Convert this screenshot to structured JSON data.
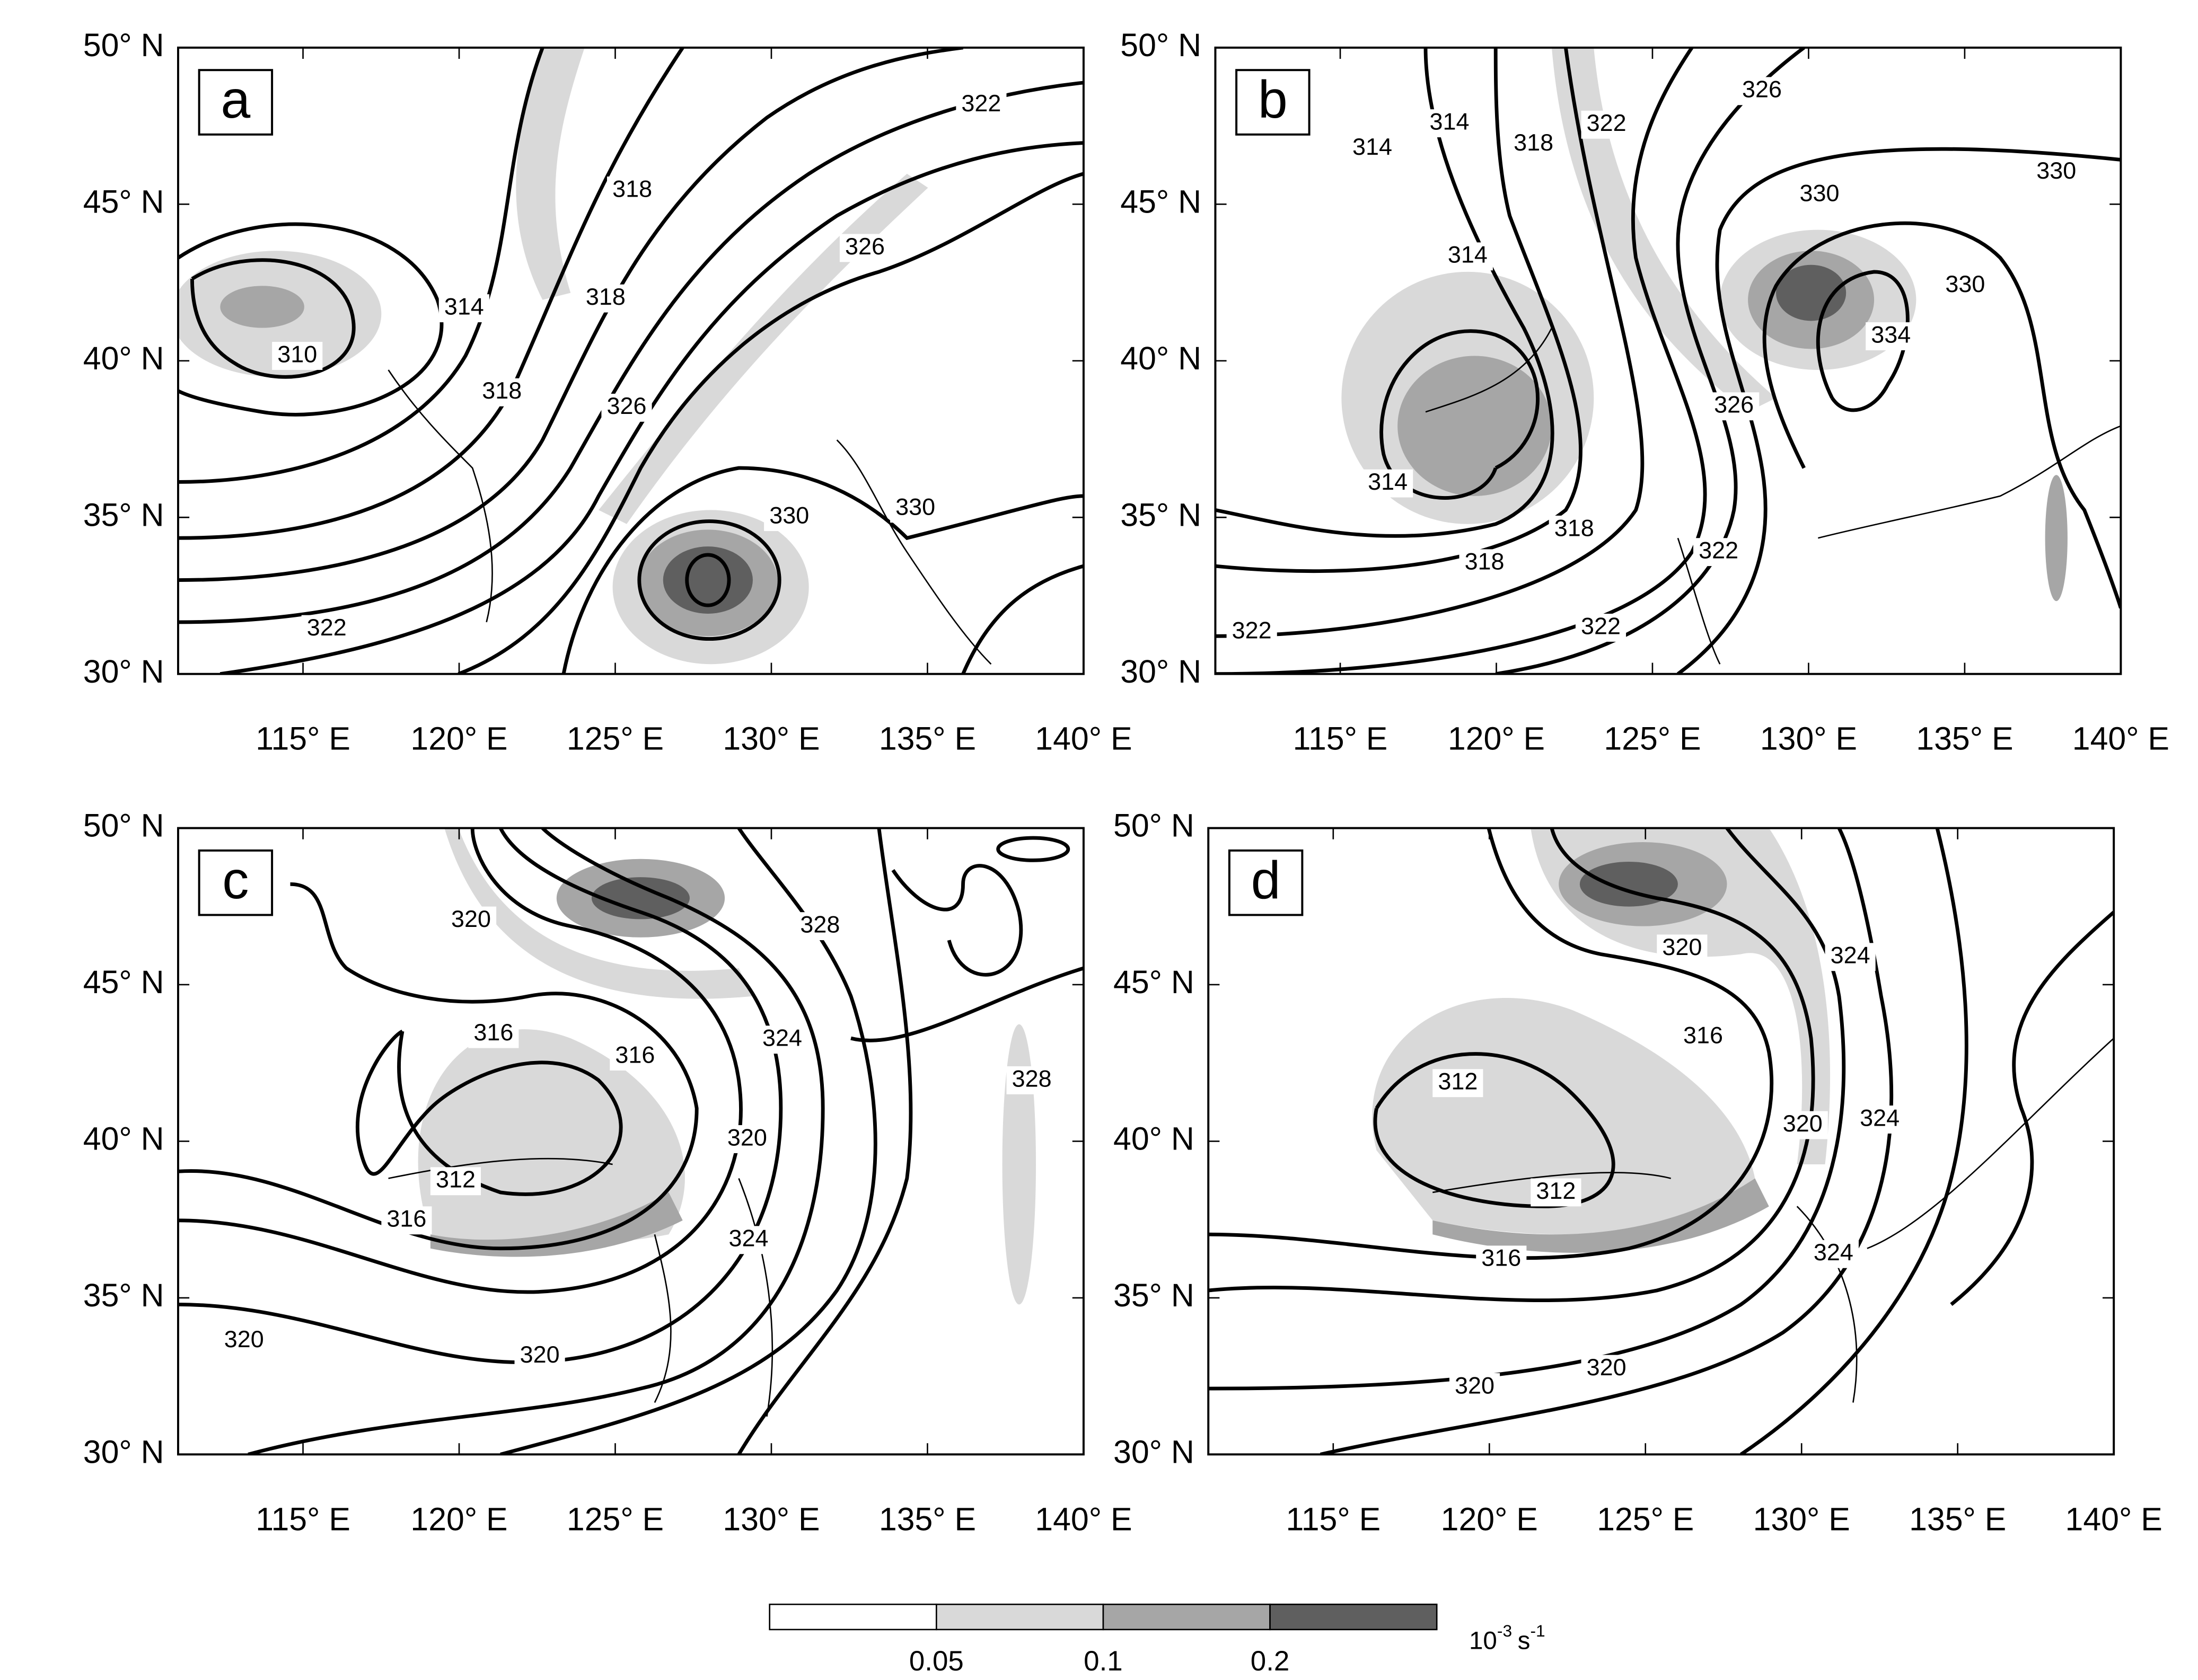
{
  "panels": [
    {
      "label": "a",
      "contour_labels": [
        "322",
        "318",
        "326",
        "314",
        "318",
        "310",
        "318",
        "326",
        "330",
        "330",
        "322"
      ]
    },
    {
      "label": "b",
      "contour_labels": [
        "326",
        "322",
        "314",
        "314",
        "318",
        "330",
        "330",
        "314",
        "334",
        "330",
        "326",
        "314",
        "318",
        "322",
        "318",
        "322",
        "322"
      ]
    },
    {
      "label": "c",
      "contour_labels": [
        "328",
        "320",
        "316",
        "316",
        "324",
        "328",
        "320",
        "312",
        "316",
        "324",
        "320",
        "320"
      ]
    },
    {
      "label": "d",
      "contour_labels": [
        "320",
        "324",
        "316",
        "312",
        "324",
        "320",
        "312",
        "316",
        "324",
        "320",
        "320"
      ]
    }
  ],
  "lat_labels": [
    "50° N",
    "45° N",
    "40° N",
    "35° N",
    "30° N"
  ],
  "lon_labels": [
    "115° E",
    "120° E",
    "125° E",
    "130° E",
    "135° E",
    "140° E"
  ],
  "colorbar": {
    "labels": [
      "0.05",
      "0.1",
      "0.2"
    ],
    "unit": {
      "base": "10",
      "exp1": "-3",
      "unit": "s",
      "exp2": "-1"
    }
  }
}
